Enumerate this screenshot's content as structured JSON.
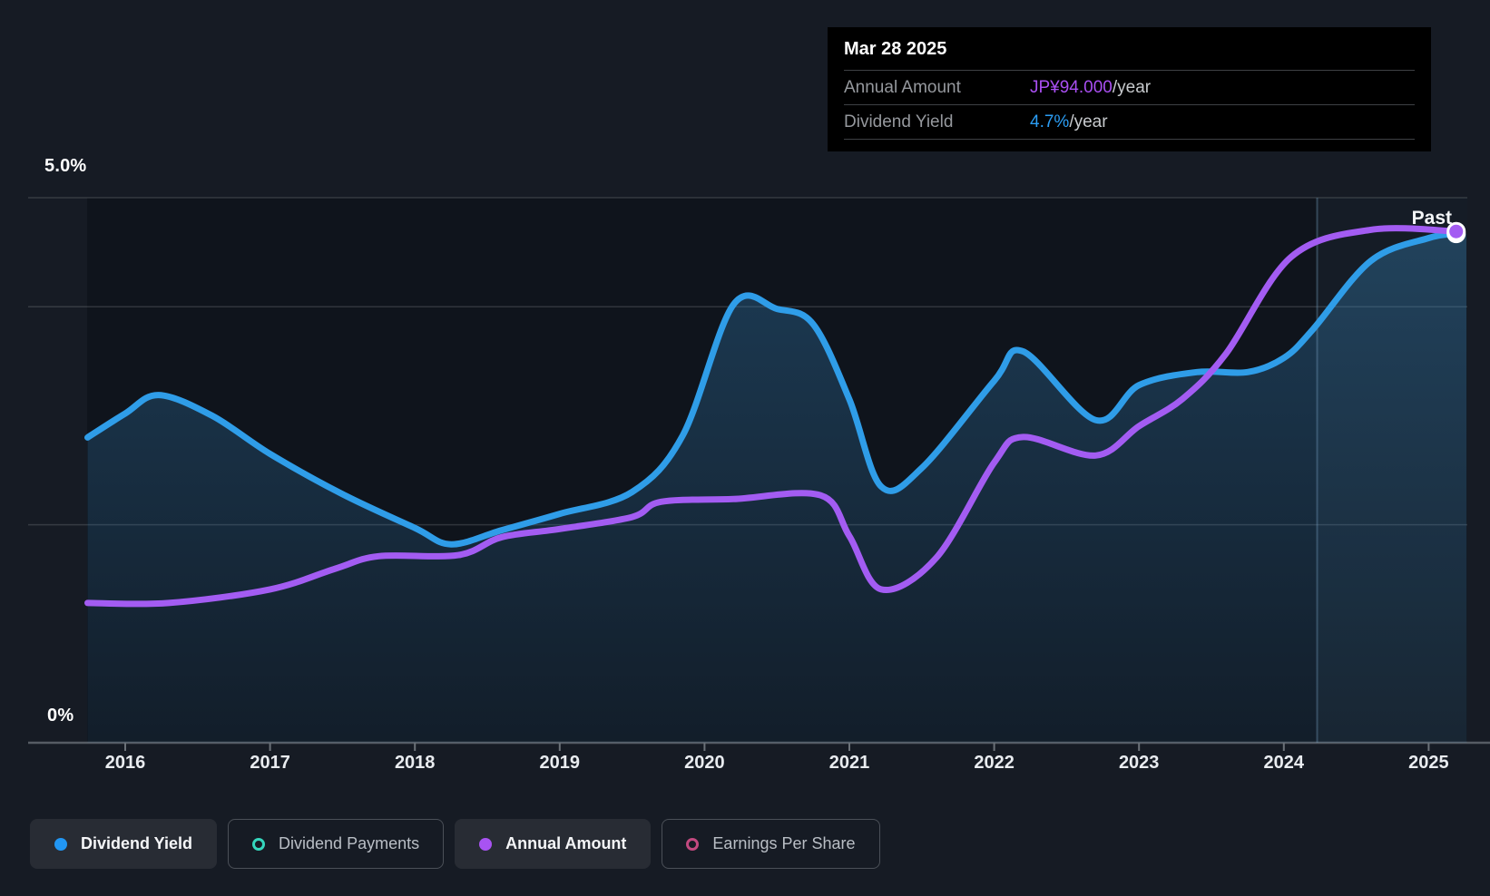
{
  "page": {
    "bg": "#161b24"
  },
  "tooltip": {
    "date": "Mar 28 2025",
    "rows": [
      {
        "label": "Annual Amount",
        "value": "JP¥94.000",
        "suffix": "/year",
        "color": "#a94ff2"
      },
      {
        "label": "Dividend Yield",
        "value": "4.7%",
        "suffix": "/year",
        "color": "#2b9df4"
      }
    ]
  },
  "chart_data": {
    "type": "area",
    "x_axis": {
      "ticks": [
        2016,
        2017,
        2018,
        2019,
        2020,
        2021,
        2022,
        2023,
        2024,
        2025
      ],
      "range": [
        2015.74,
        2025.26
      ]
    },
    "y_axis_left": {
      "unit": "%",
      "range": [
        0,
        5
      ],
      "label_top": "5.0%",
      "label_bottom": "0%",
      "gridlines": [
        5,
        4,
        2
      ]
    },
    "y_axis_right": {
      "unit": "JP¥",
      "range": [
        0,
        100.2
      ],
      "labels_visible": false
    },
    "past_label": "Past",
    "past_divider_x": 2024.23,
    "legend_position": "bottom",
    "series": [
      {
        "name": "Dividend Yield",
        "axis": "left",
        "unit": "%",
        "color": "#2f9de8",
        "fill": true,
        "marker_end": true,
        "points": [
          [
            2015.74,
            2.8
          ],
          [
            2016.0,
            3.02
          ],
          [
            2016.23,
            3.19
          ],
          [
            2016.6,
            3.0
          ],
          [
            2017.0,
            2.65
          ],
          [
            2017.5,
            2.28
          ],
          [
            2018.0,
            1.97
          ],
          [
            2018.25,
            1.82
          ],
          [
            2018.6,
            1.95
          ],
          [
            2019.0,
            2.1
          ],
          [
            2019.5,
            2.3
          ],
          [
            2019.85,
            2.82
          ],
          [
            2020.2,
            4.02
          ],
          [
            2020.5,
            3.98
          ],
          [
            2020.75,
            3.84
          ],
          [
            2021.0,
            3.15
          ],
          [
            2021.22,
            2.35
          ],
          [
            2021.5,
            2.52
          ],
          [
            2022.0,
            3.32
          ],
          [
            2022.2,
            3.59
          ],
          [
            2022.7,
            2.96
          ],
          [
            2023.0,
            3.28
          ],
          [
            2023.4,
            3.4
          ],
          [
            2023.75,
            3.4
          ],
          [
            2024.0,
            3.53
          ],
          [
            2024.2,
            3.79
          ],
          [
            2024.6,
            4.42
          ],
          [
            2025.0,
            4.63
          ],
          [
            2025.19,
            4.67
          ]
        ]
      },
      {
        "name": "Annual Amount",
        "axis": "right",
        "unit": "JP¥",
        "color": "#a35cf2",
        "fill": false,
        "marker_end": true,
        "points": [
          [
            2015.74,
            25.7
          ],
          [
            2016.3,
            25.7
          ],
          [
            2017.0,
            28.2
          ],
          [
            2017.45,
            32.0
          ],
          [
            2017.75,
            34.3
          ],
          [
            2018.3,
            34.5
          ],
          [
            2018.6,
            37.8
          ],
          [
            2019.0,
            39.3
          ],
          [
            2019.5,
            41.5
          ],
          [
            2019.7,
            44.3
          ],
          [
            2020.2,
            44.8
          ],
          [
            2020.8,
            45.5
          ],
          [
            2021.0,
            38.0
          ],
          [
            2021.22,
            28.2
          ],
          [
            2021.6,
            34.0
          ],
          [
            2022.0,
            51.5
          ],
          [
            2022.2,
            56.2
          ],
          [
            2022.7,
            52.8
          ],
          [
            2023.0,
            58.2
          ],
          [
            2023.3,
            63.2
          ],
          [
            2023.6,
            71.5
          ],
          [
            2024.05,
            89.3
          ],
          [
            2024.6,
            94.3
          ],
          [
            2025.19,
            94.0
          ]
        ]
      }
    ]
  },
  "legend": {
    "items": [
      {
        "label": "Dividend Yield",
        "active": true,
        "marker": "filled",
        "color": "#2196f3"
      },
      {
        "label": "Dividend Payments",
        "active": false,
        "marker": "hollow",
        "color": "#35d6bd"
      },
      {
        "label": "Annual Amount",
        "active": true,
        "marker": "filled",
        "color": "#a853f2"
      },
      {
        "label": "Earnings Per Share",
        "active": false,
        "marker": "hollow",
        "color": "#c2497f"
      }
    ]
  }
}
